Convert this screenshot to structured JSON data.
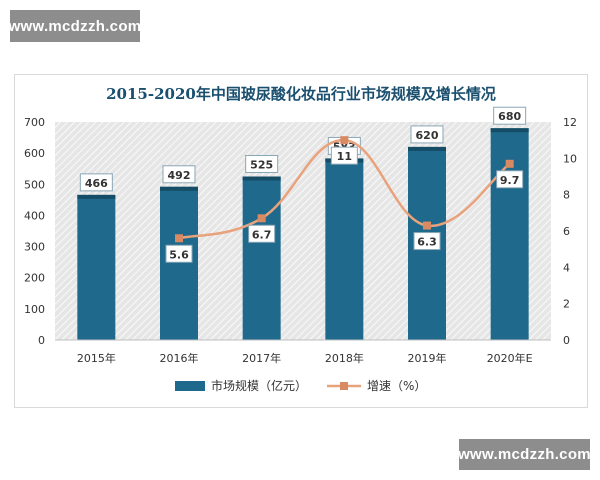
{
  "watermark": {
    "text": "www.mcdzzh.com"
  },
  "chart_data": {
    "type": "bar",
    "title": "2015-2020年中国玻尿酸化妆品行业市场规模及增长情况",
    "categories": [
      "2015年",
      "2016年",
      "2017年",
      "2018年",
      "2019年",
      "2020年E"
    ],
    "series": [
      {
        "name": "市场规模（亿元）",
        "type": "bar",
        "axis": "left",
        "values": [
          466,
          492,
          525,
          583,
          620,
          680
        ],
        "labels": [
          "466",
          "492",
          "525",
          "583",
          "620",
          "680"
        ]
      },
      {
        "name": "增速（%）",
        "type": "line",
        "axis": "right",
        "values": [
          null,
          5.6,
          6.7,
          11,
          6.3,
          9.7
        ],
        "labels": [
          "",
          "5.6",
          "6.7",
          "11",
          "6.3",
          "9.7"
        ]
      }
    ],
    "y_left": {
      "min": 0,
      "max": 700,
      "step": 100,
      "ticks": [
        "0",
        "100",
        "200",
        "300",
        "400",
        "500",
        "600",
        "700"
      ]
    },
    "y_right": {
      "min": 0,
      "max": 12,
      "step": 2,
      "ticks": [
        "0",
        "2",
        "4",
        "6",
        "8",
        "10",
        "12"
      ]
    },
    "legend_position": "bottom",
    "colors": {
      "bar": "#1f6a8c",
      "bar_top": "#154c66",
      "line": "#e8a27c",
      "marker": "#d98a62",
      "title": "#1a4f70",
      "plot_bg": "#e6e6e6",
      "hatch": "#ffffff"
    }
  }
}
